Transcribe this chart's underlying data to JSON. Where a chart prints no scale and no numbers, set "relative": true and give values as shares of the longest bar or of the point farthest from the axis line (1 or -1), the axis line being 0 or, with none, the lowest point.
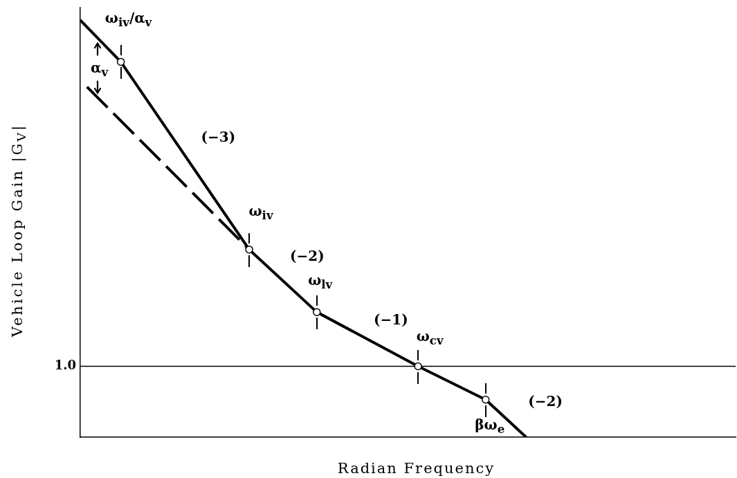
{
  "chart_data": {
    "type": "line",
    "relative": true,
    "xlabel": "Radian Frequency",
    "ylabel": "Vehicle Loop Gain |G$_{V}$|",
    "line_style": "solid",
    "categories": [
      null,
      null,
      null,
      null,
      null,
      null,
      null,
      null,
      null,
      null,
      null,
      null,
      null,
      null,
      null,
      null,
      null,
      null,
      null,
      null,
      null,
      null,
      null,
      null,
      null,
      null,
      null,
      null,
      null,
      null,
      null,
      null,
      null,
      null,
      null,
      null,
      null,
      null,
      null,
      null,
      null,
      null,
      null,
      null,
      null,
      null,
      null,
      null,
      null,
      null,
      null,
      null,
      null,
      null,
      null,
      null,
      null,
      null,
      null,
      null,
      null,
      null,
      null,
      null,
      null,
      null,
      null,
      null,
      null,
      null,
      null,
      null,
      null,
      null,
      null,
      null,
      null,
      null,
      null,
      null,
      null,
      null,
      null,
      null,
      null,
      null,
      null,
      null,
      null,
      null,
      null,
      null,
      null,
      null,
      null,
      null,
      null,
      null
    ],
    "series": [
      {
        "color": "#000000",
        "marker": "circle",
        "values": [
          1,
          null,
          null,
          null,
          null,
          null,
          0.9,
          null,
          null,
          null,
          null,
          null,
          null,
          null,
          null,
          null,
          null,
          null,
          null,
          null,
          null,
          null,
          null,
          null,
          null,
          0.45,
          null,
          null,
          null,
          null,
          null,
          null,
          null,
          null,
          null,
          0.3,
          null,
          null,
          null,
          null,
          null,
          null,
          null,
          null,
          null,
          null,
          null,
          null,
          null,
          null,
          0.17,
          null,
          null,
          null,
          null,
          null,
          null,
          null,
          null,
          null,
          0.09,
          null,
          null,
          null,
          null,
          null,
          0,
          null,
          null,
          null,
          null,
          null,
          null,
          null,
          null,
          null,
          null,
          null,
          null,
          null,
          null,
          null,
          null,
          null,
          null,
          null,
          null,
          null,
          null,
          null,
          null,
          null,
          null,
          null,
          null,
          null,
          null,
          null
        ]
      },
      {
        "color": "#000000",
        "line_style": "dashed",
        "values": [
          null,
          0.84,
          null,
          null,
          null,
          null,
          null,
          null,
          null,
          null,
          null,
          null,
          null,
          null,
          null,
          null,
          null,
          null,
          null,
          null,
          null,
          null,
          null,
          null,
          null,
          0.45,
          null,
          null,
          null,
          null,
          null,
          null,
          null,
          null,
          null,
          null,
          null,
          null,
          null,
          null,
          null,
          null,
          null,
          null,
          null,
          null,
          null,
          null,
          null,
          null,
          null,
          null,
          null,
          null,
          null,
          null,
          null,
          null,
          null,
          null,
          null,
          null,
          null,
          null,
          null,
          null,
          null,
          null,
          null,
          null,
          null,
          null,
          null,
          null,
          null,
          null,
          null,
          null,
          null,
          null,
          null,
          null,
          null,
          null,
          null,
          null,
          null,
          null,
          null,
          null,
          null,
          null,
          null,
          null,
          null,
          null,
          null,
          null
        ]
      }
    ],
    "ref_lines": [
      {
        "axis": "y",
        "value": 0.17
      }
    ],
    "annotations": [
      "ω$_{iv}$/α$_{v}$",
      "α$_{v}$",
      "(−3)",
      "ω$_{iv}$",
      "(−2)",
      {
        "text": "ω$_{lv}$",
        "y": 0.3
      },
      "(−1)",
      {
        "text": "ω$_{cv}$",
        "y": 0.17
      },
      "(−2)",
      {
        "text": "βω$_{e}$",
        "y": 0.09
      },
      "1.0"
    ]
  }
}
